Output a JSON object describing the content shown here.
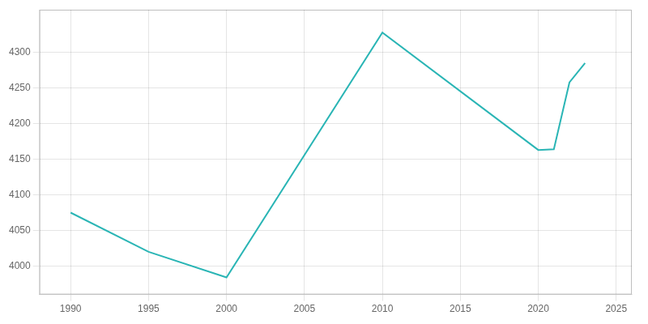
{
  "chart_data": {
    "type": "line",
    "x": [
      1990,
      1995,
      2000,
      2010,
      2020,
      2021,
      2022,
      2023
    ],
    "values": [
      4075,
      4020,
      3984,
      4328,
      4163,
      4164,
      4258,
      4285
    ],
    "color": "#2ab5b5",
    "xlim": [
      1988,
      2026
    ],
    "ylim": [
      3960,
      4360
    ],
    "xticks": [
      1990,
      1995,
      2000,
      2005,
      2010,
      2015,
      2020,
      2025
    ],
    "yticks": [
      4000,
      4050,
      4100,
      4150,
      4200,
      4250,
      4300
    ],
    "grid": true
  }
}
